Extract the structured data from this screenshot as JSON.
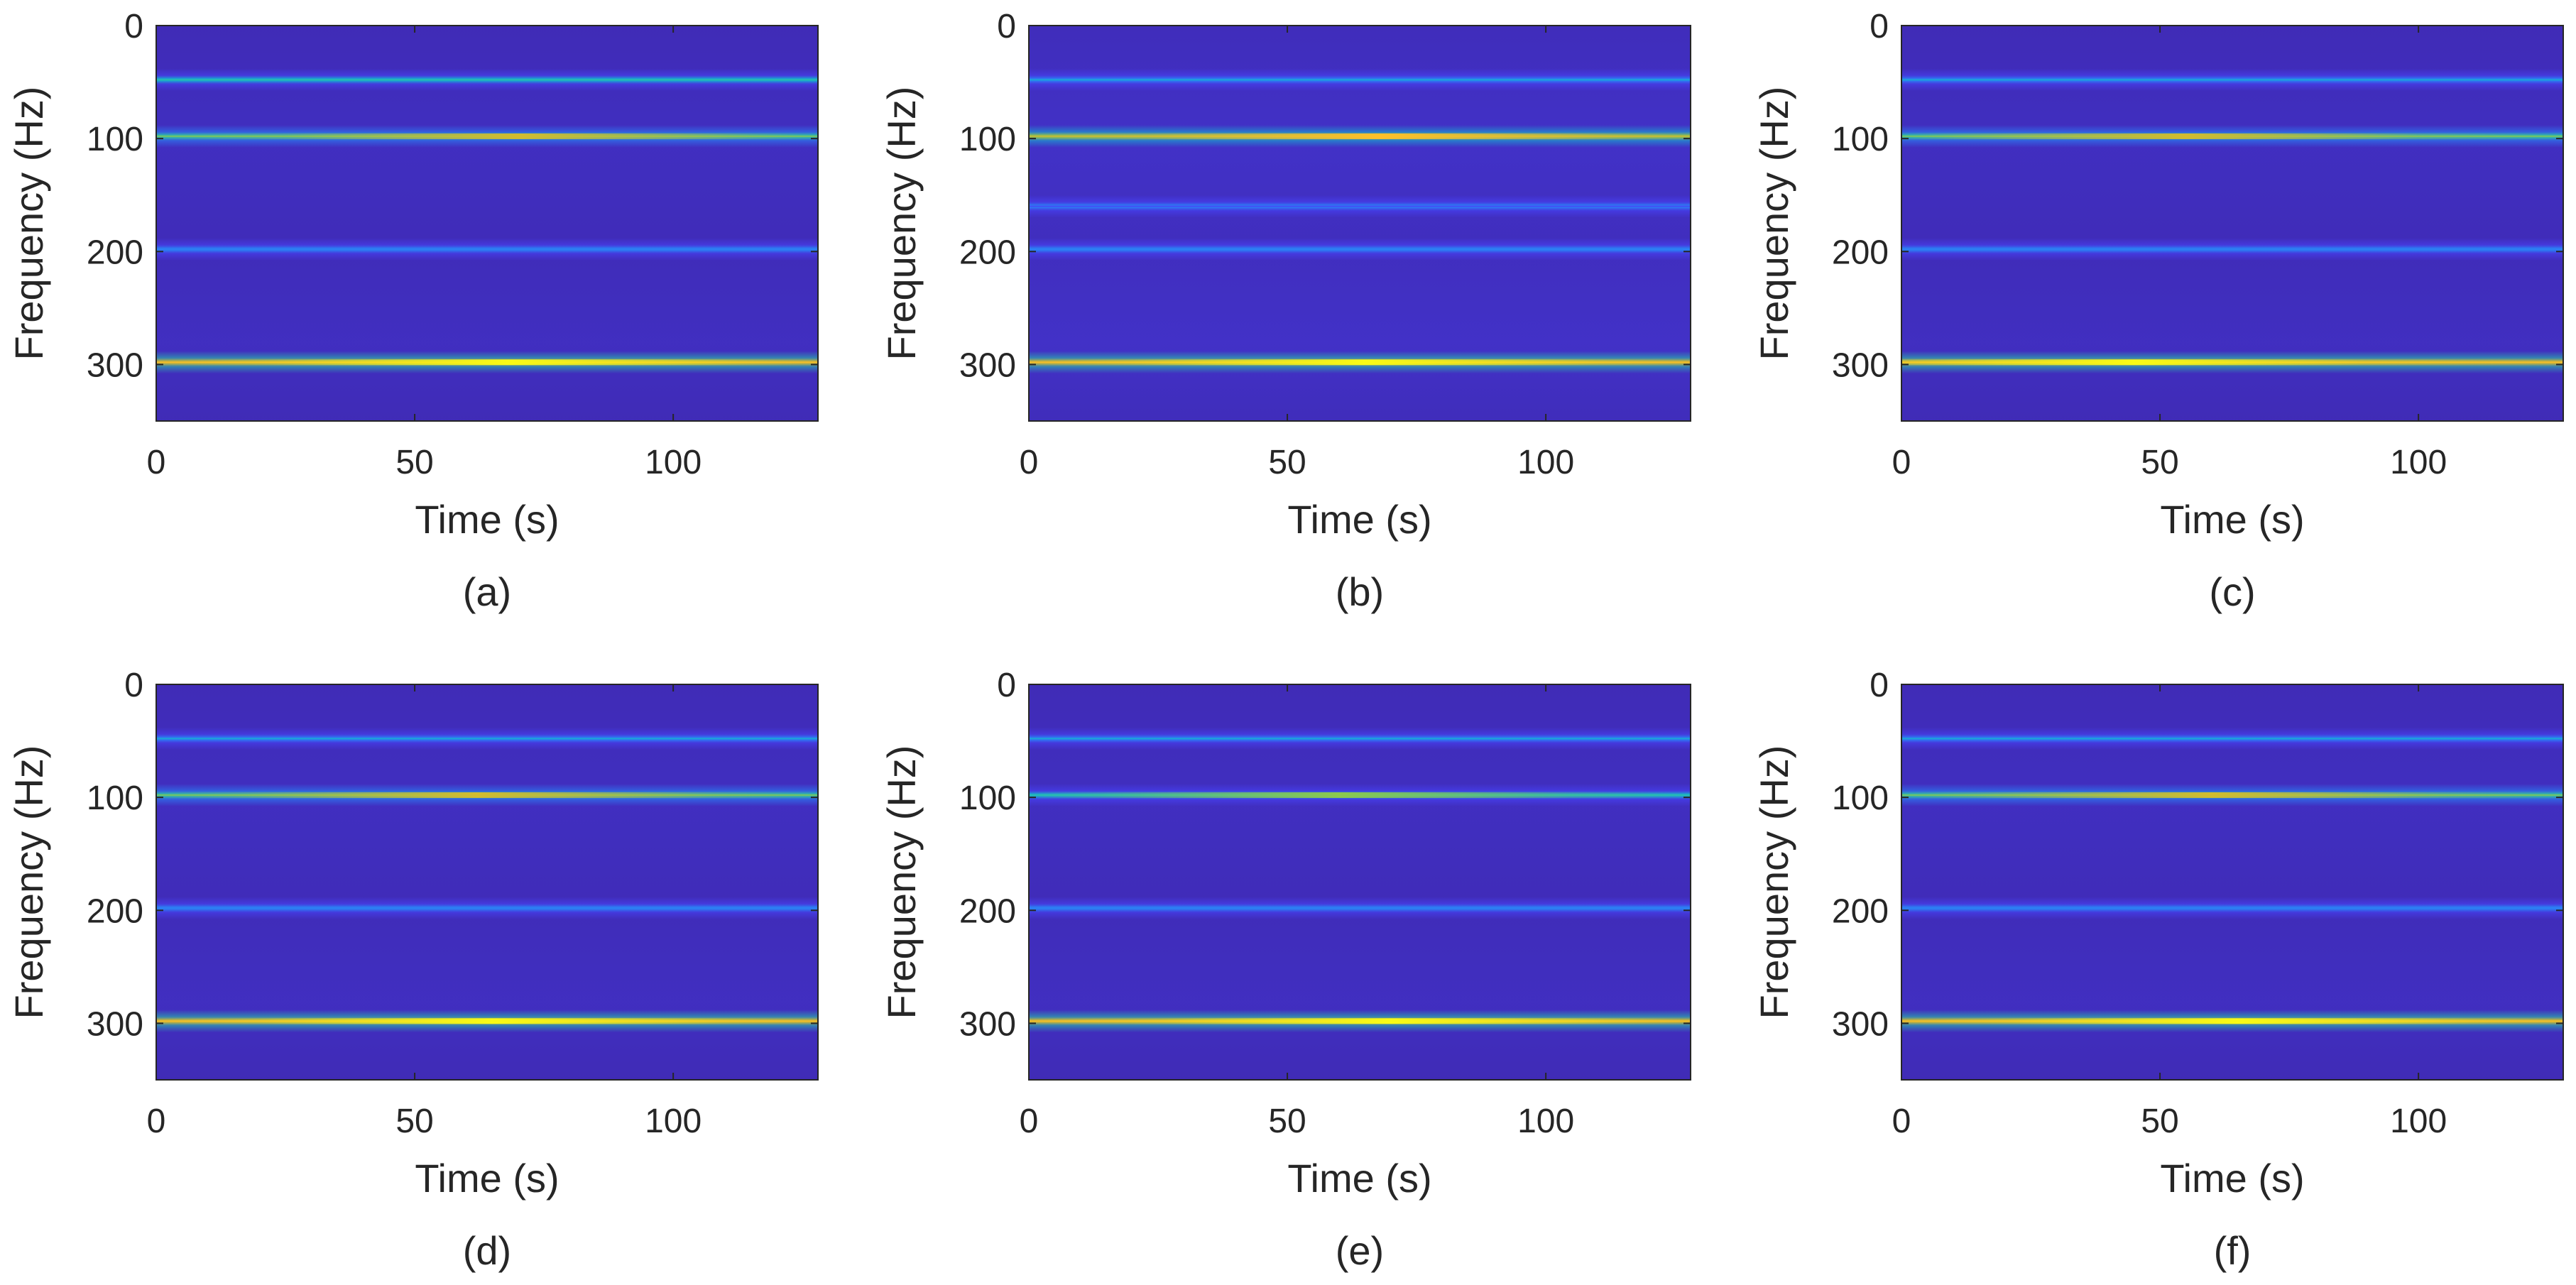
{
  "figure": {
    "background": "#ffffff"
  },
  "colormap": {
    "name": "parula",
    "stops": [
      "#3e26a8",
      "#4743f8",
      "#2b81f6",
      "#16b1d1",
      "#2ac3a9",
      "#8cc94d",
      "#d2bc2e",
      "#fdc02a",
      "#f9fb15"
    ]
  },
  "chart_data": [
    {
      "type": "heatmap",
      "caption": "(a)",
      "xlabel": "Time (s)",
      "ylabel": "Frequency (Hz)",
      "xlim": [
        0,
        128
      ],
      "ylim": [
        0,
        350
      ],
      "y_reversed": true,
      "xticks": [
        0,
        50,
        100
      ],
      "yticks": [
        0,
        100,
        200,
        300
      ],
      "background_level": 0.1,
      "bands": [
        {
          "freq": 48,
          "intensity": 0.48
        },
        {
          "freq": 98,
          "intensity": 0.6,
          "peak_time": 70
        },
        {
          "freq": 198,
          "intensity": 0.27
        },
        {
          "freq": 298,
          "intensity": 0.9,
          "peak_time": 68
        }
      ]
    },
    {
      "type": "heatmap",
      "caption": "(b)",
      "xlabel": "Time (s)",
      "ylabel": "Frequency (Hz)",
      "xlim": [
        0,
        128
      ],
      "ylim": [
        0,
        350
      ],
      "y_reversed": true,
      "xticks": [
        0,
        50,
        100
      ],
      "yticks": [
        0,
        100,
        200,
        300
      ],
      "background_level": 0.13,
      "bands": [
        {
          "freq": 48,
          "intensity": 0.42
        },
        {
          "freq": 98,
          "intensity": 0.72,
          "peak_time": 68
        },
        {
          "freq": 160,
          "intensity": 0.18
        },
        {
          "freq": 198,
          "intensity": 0.3
        },
        {
          "freq": 298,
          "intensity": 0.85,
          "peak_time": 65
        }
      ]
    },
    {
      "type": "heatmap",
      "caption": "(c)",
      "xlabel": "Time (s)",
      "ylabel": "Frequency (Hz)",
      "xlim": [
        0,
        128
      ],
      "ylim": [
        0,
        350
      ],
      "y_reversed": true,
      "xticks": [
        0,
        50,
        100
      ],
      "yticks": [
        0,
        100,
        200,
        300
      ],
      "background_level": 0.1,
      "bands": [
        {
          "freq": 48,
          "intensity": 0.38
        },
        {
          "freq": 98,
          "intensity": 0.58,
          "peak_time": 55
        },
        {
          "freq": 198,
          "intensity": 0.22
        },
        {
          "freq": 298,
          "intensity": 0.82,
          "peak_time": 45
        }
      ]
    },
    {
      "type": "heatmap",
      "caption": "(d)",
      "xlabel": "Time (s)",
      "ylabel": "Frequency (Hz)",
      "xlim": [
        0,
        128
      ],
      "ylim": [
        0,
        350
      ],
      "y_reversed": true,
      "xticks": [
        0,
        50,
        100
      ],
      "yticks": [
        0,
        100,
        200,
        300
      ],
      "background_level": 0.1,
      "bands": [
        {
          "freq": 48,
          "intensity": 0.42
        },
        {
          "freq": 98,
          "intensity": 0.68,
          "peak_time": 62
        },
        {
          "freq": 198,
          "intensity": 0.25
        },
        {
          "freq": 298,
          "intensity": 0.85,
          "peak_time": 65
        }
      ]
    },
    {
      "type": "heatmap",
      "caption": "(e)",
      "xlabel": "Time (s)",
      "ylabel": "Frequency (Hz)",
      "xlim": [
        0,
        128
      ],
      "ylim": [
        0,
        350
      ],
      "y_reversed": true,
      "xticks": [
        0,
        50,
        100
      ],
      "yticks": [
        0,
        100,
        200,
        300
      ],
      "background_level": 0.1,
      "bands": [
        {
          "freq": 48,
          "intensity": 0.38
        },
        {
          "freq": 98,
          "intensity": 0.52,
          "peak_time": 60
        },
        {
          "freq": 198,
          "intensity": 0.25
        },
        {
          "freq": 298,
          "intensity": 0.85,
          "peak_time": 70
        }
      ]
    },
    {
      "type": "heatmap",
      "caption": "(f)",
      "xlabel": "Time (s)",
      "ylabel": "Frequency (Hz)",
      "xlim": [
        0,
        128
      ],
      "ylim": [
        0,
        350
      ],
      "y_reversed": true,
      "xticks": [
        0,
        50,
        100
      ],
      "yticks": [
        0,
        100,
        200,
        300
      ],
      "background_level": 0.1,
      "bands": [
        {
          "freq": 48,
          "intensity": 0.42
        },
        {
          "freq": 98,
          "intensity": 0.58,
          "peak_time": 60
        },
        {
          "freq": 198,
          "intensity": 0.25
        },
        {
          "freq": 298,
          "intensity": 0.82,
          "peak_time": 65
        }
      ]
    }
  ]
}
